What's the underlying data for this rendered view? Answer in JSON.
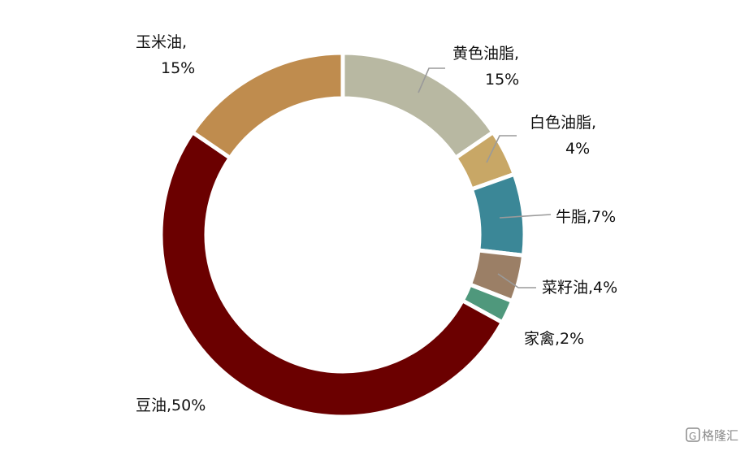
{
  "chart_data": {
    "type": "pie",
    "variant": "donut",
    "slices": [
      {
        "name": "黄色油脂",
        "value": 15,
        "label_line1": "黄色油脂,",
        "label_line2": "15%",
        "color": "#b8b8a2"
      },
      {
        "name": "白色油脂",
        "value": 4,
        "label_line1": "白色油脂,",
        "label_line2": "4%",
        "color": "#c8a766"
      },
      {
        "name": "牛脂",
        "value": 7,
        "label_line1": "牛脂,7%",
        "label_line2": "",
        "color": "#3b8797"
      },
      {
        "name": "菜籽油",
        "value": 4,
        "label_line1": "菜籽油,4%",
        "label_line2": "",
        "color": "#9b7f66"
      },
      {
        "name": "家禽",
        "value": 2,
        "label_line1": "家禽,2%",
        "label_line2": "",
        "color": "#4f987c"
      },
      {
        "name": "豆油",
        "value": 50,
        "label_line1": "豆油,50%",
        "label_line2": "",
        "color": "#6b0000"
      },
      {
        "name": "玉米油",
        "value": 15,
        "label_line1": "玉米油,",
        "label_line2": "15%",
        "color": "#bf8c4e"
      }
    ],
    "legend": "none"
  },
  "watermark": {
    "text": "格隆汇",
    "glyph": "G"
  }
}
